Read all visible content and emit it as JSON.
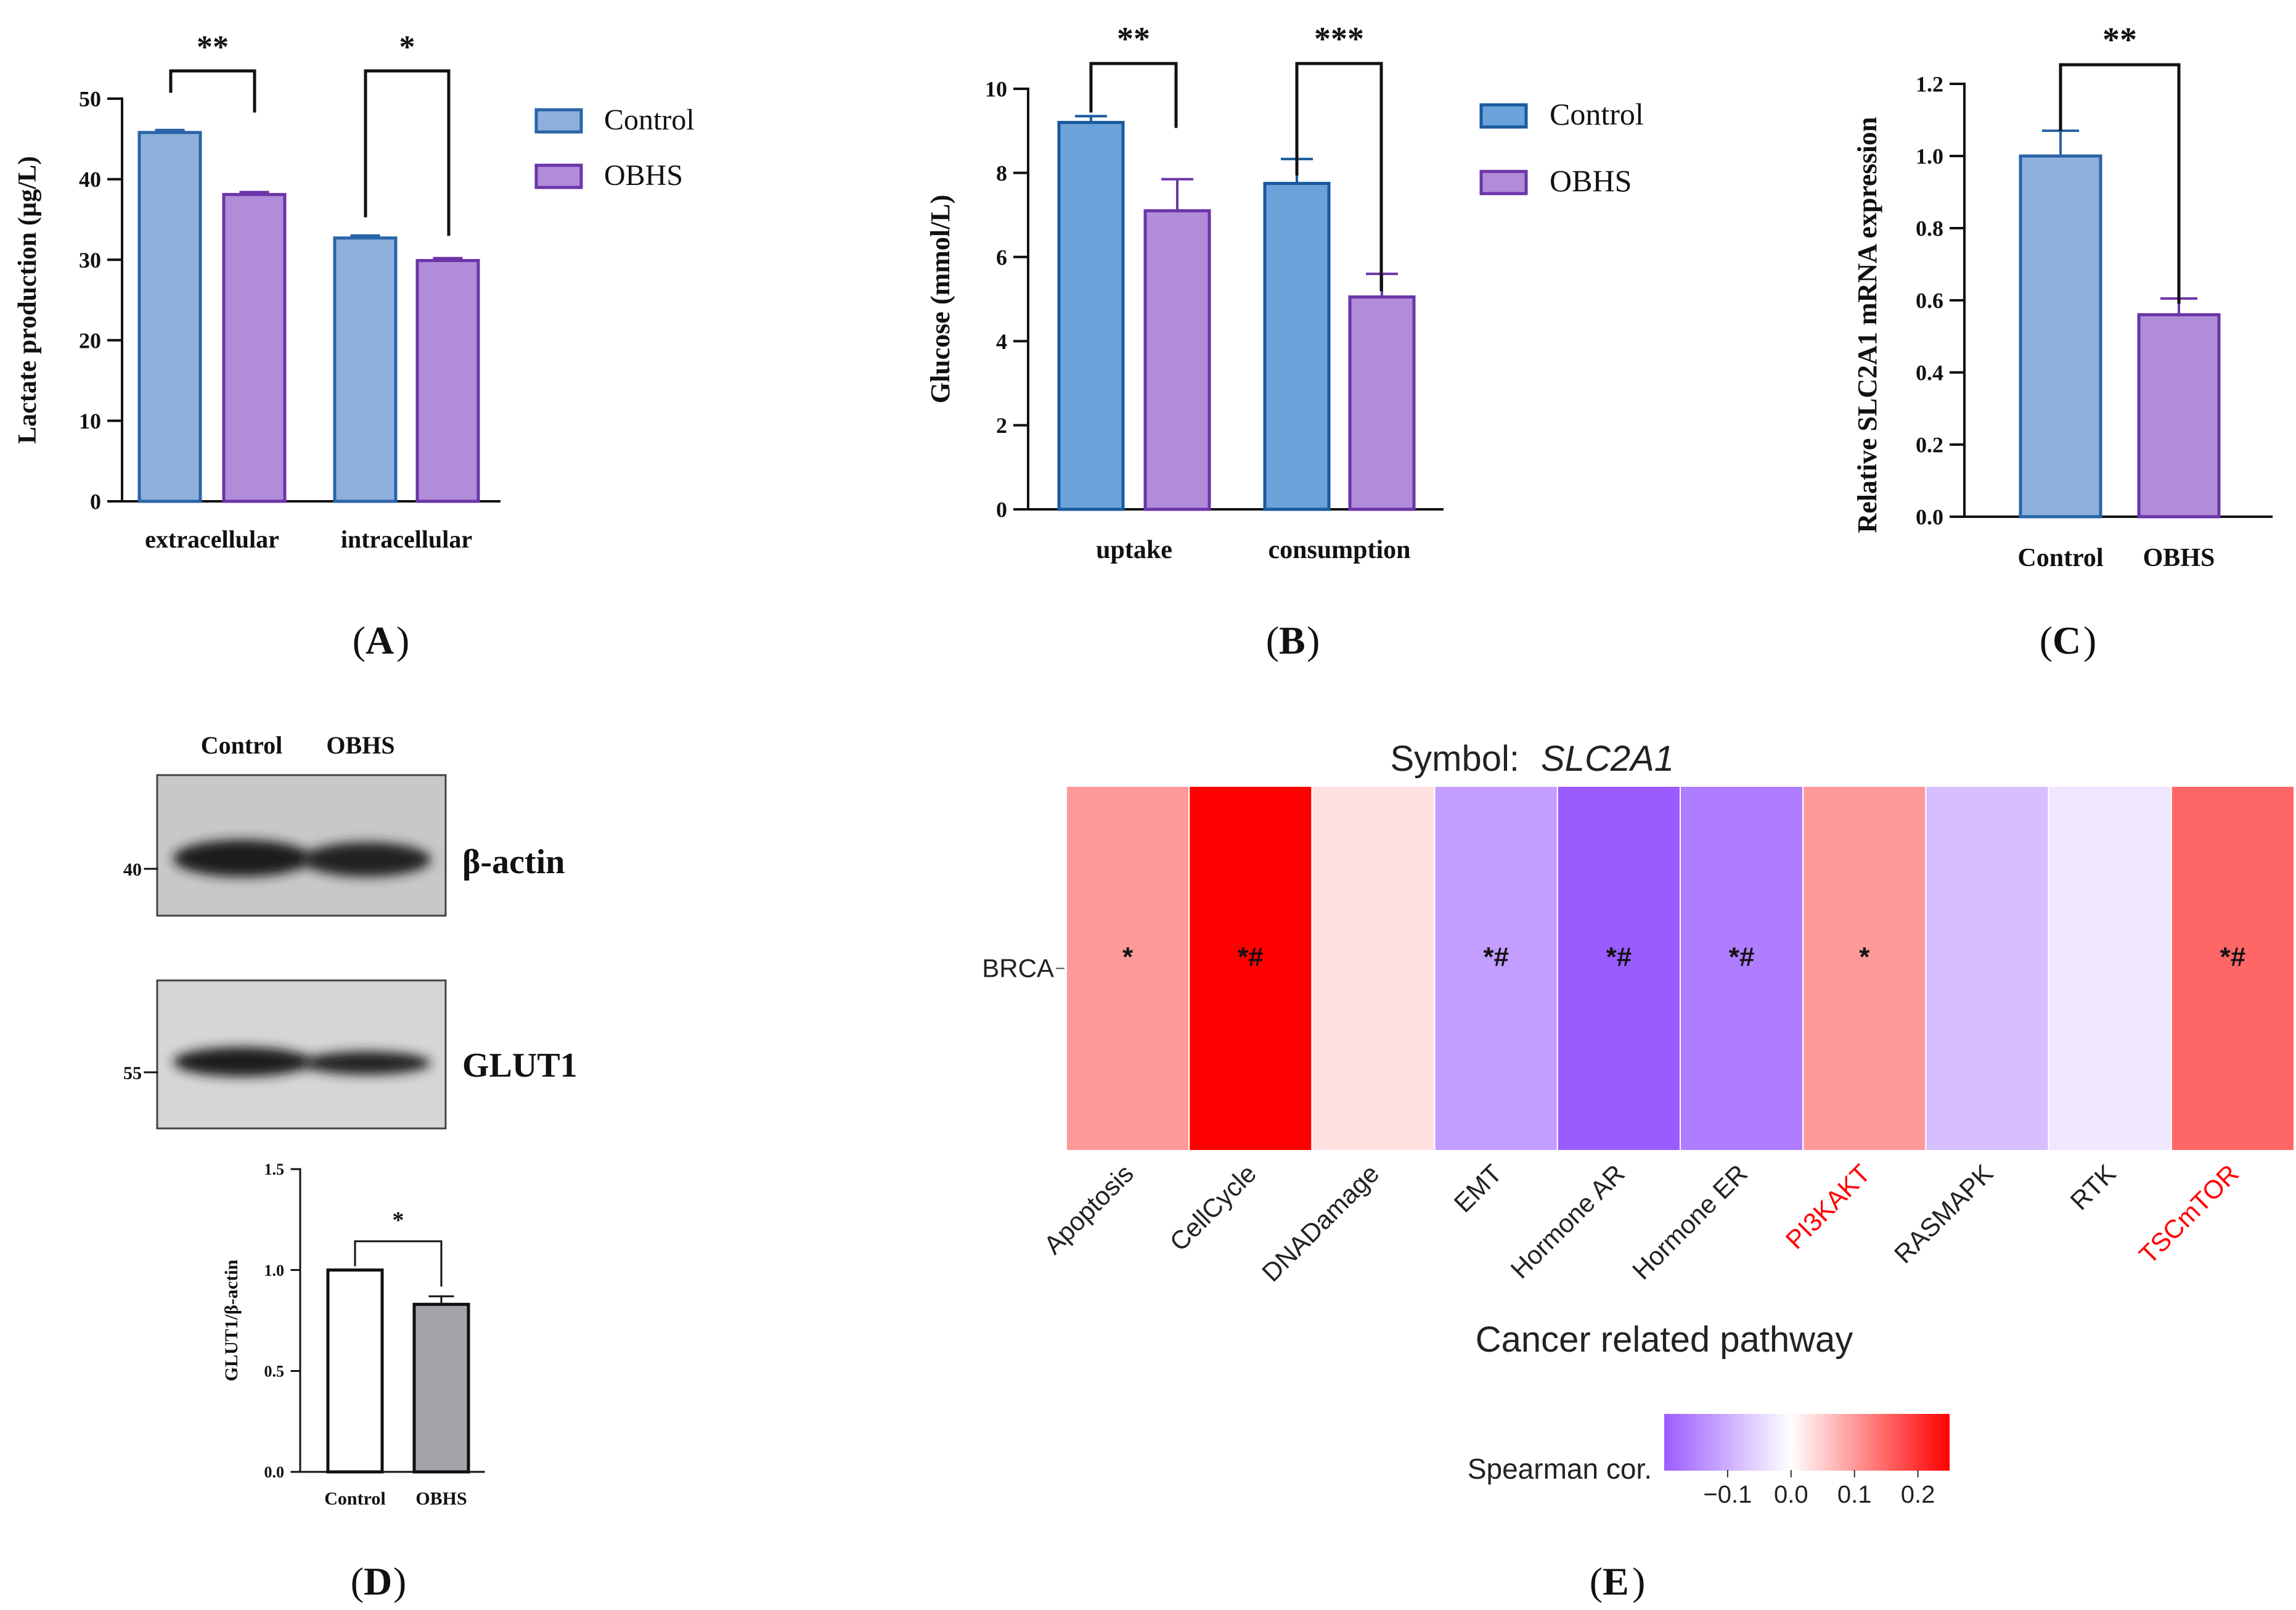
{
  "chart_data": [
    {
      "panel_label": "A",
      "type": "bar",
      "ylabel": "Lactate production (µg/L)",
      "ylim": [
        0,
        50
      ],
      "yticks": [
        "0",
        "10",
        "20",
        "30",
        "40",
        "50"
      ],
      "categories": [
        "extracellular",
        "intracellular"
      ],
      "legend_position": "right",
      "series": [
        {
          "name": "Control",
          "values": [
            45.8,
            32.7
          ],
          "errors": [
            0.3,
            0.3
          ],
          "color": "#8fb0dc",
          "edge": "#2a64a8"
        },
        {
          "name": "OBHS",
          "values": [
            38.1,
            29.9
          ],
          "errors": [
            0.3,
            0.3
          ],
          "color": "#b08cd9",
          "edge": "#6b35a8"
        }
      ],
      "significance": [
        "**",
        "*"
      ]
    },
    {
      "panel_label": "B",
      "type": "bar",
      "ylabel": "Glucose (mmol/L)",
      "ylim": [
        0,
        10
      ],
      "yticks": [
        "0",
        "2",
        "4",
        "6",
        "8",
        "10"
      ],
      "categories": [
        "uptake",
        "consumption"
      ],
      "legend_position": "right",
      "series": [
        {
          "name": "Control",
          "values": [
            9.2,
            7.75
          ],
          "errors": [
            0.15,
            0.58
          ],
          "color": "#6aa2d9",
          "edge": "#1a5a9e"
        },
        {
          "name": "OBHS",
          "values": [
            7.1,
            5.05
          ],
          "errors": [
            0.75,
            0.55
          ],
          "color": "#b08cd9",
          "edge": "#6b35a8"
        }
      ],
      "significance": [
        "**",
        "***"
      ]
    },
    {
      "panel_label": "C",
      "type": "bar",
      "ylabel": "Relative SLC2A1 mRNA expression",
      "ylim": [
        0,
        1.2
      ],
      "yticks": [
        "0.0",
        "0.2",
        "0.4",
        "0.6",
        "0.8",
        "1.0",
        "1.2"
      ],
      "categories": [
        "Control",
        "OBHS"
      ],
      "values": [
        1.0,
        0.56
      ],
      "errors": [
        0.07,
        0.045
      ],
      "colors": [
        "#8fb0dc",
        "#b08cd9"
      ],
      "edges": [
        "#2a64a8",
        "#6b35a8"
      ],
      "significance": [
        "**"
      ]
    },
    {
      "panel_label": "D",
      "type": "bar",
      "blot": {
        "lane_labels": [
          "Control",
          "OBHS"
        ],
        "bands": [
          {
            "name": "β-actin",
            "marker": "40"
          },
          {
            "name": "GLUT1",
            "marker": "55"
          }
        ]
      },
      "ylabel": "GLUT1/β-actin",
      "ylim": [
        0,
        1.5
      ],
      "yticks": [
        "0.0",
        "0.5",
        "1.0",
        "1.5"
      ],
      "categories": [
        "Control",
        "OBHS"
      ],
      "values": [
        1.0,
        0.83
      ],
      "errors": [
        0,
        0.04
      ],
      "colors": [
        "#ffffff",
        "#a3a3a8"
      ],
      "significance": [
        "*"
      ]
    },
    {
      "panel_label": "E",
      "type": "heatmap",
      "title_prefix": "Symbol:",
      "title_symbol": "SLC2A1",
      "xlabel": "Cancer related pathway",
      "rows": [
        "BRCA"
      ],
      "columns": [
        "Apoptosis",
        "CellCycle",
        "DNADamage",
        "EMT",
        "Hormone AR",
        "Hormone ER",
        "PI3KAKT",
        "RASMAPK",
        "RTK",
        "TSCmTOR"
      ],
      "highlight_columns": [
        "PI3KAKT",
        "TSCmTOR"
      ],
      "highlight_color": "#ff0000",
      "values": [
        [
          0.1,
          0.25,
          0.03,
          -0.12,
          -0.2,
          -0.16,
          0.1,
          -0.08,
          -0.03,
          0.15
        ]
      ],
      "annotations": [
        [
          "*",
          "*#",
          "",
          "*#",
          "*#",
          "*#",
          "*",
          "",
          "",
          "*#"
        ]
      ],
      "colorbar_label": "Spearman cor.",
      "colorbar_ticks": [
        "−0.1",
        "0.0",
        "0.1",
        "0.2"
      ],
      "colorbar_tick_values": [
        -0.1,
        0.0,
        0.1,
        0.2
      ],
      "colorbar_range": [
        -0.2,
        0.25
      ],
      "colors": {
        "low": "#9b5cff",
        "mid": "#ffffff",
        "high": "#ff0000"
      }
    }
  ]
}
